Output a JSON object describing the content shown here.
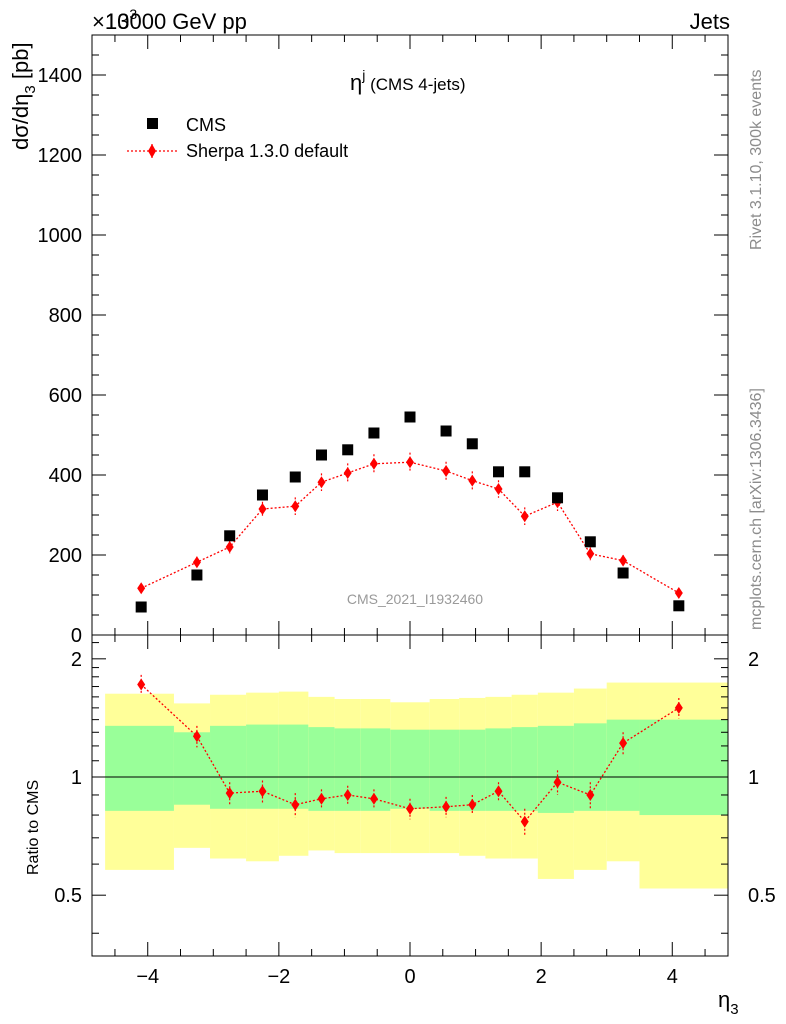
{
  "header": {
    "left": "13000 GeV pp",
    "right": "Jets",
    "exponent": "×10",
    "exponent_power": "3"
  },
  "side_labels": {
    "top": "Rivet 3.1.10,  300k events",
    "bottom": "mcplots.cern.ch [arXiv:1306.3436]"
  },
  "watermark": "CMS_2021_I1932460",
  "legend": {
    "items": [
      {
        "label": "CMS",
        "marker": "square",
        "color": "#000000"
      },
      {
        "label": "Sherpa 1.3.0 default",
        "marker": "diamond",
        "color": "#ff0000"
      }
    ]
  },
  "chart_data": [
    {
      "type": "scatter",
      "title": "η^j (CMS 4-jets)",
      "title_main": "η",
      "title_sup": "j",
      "title_rest": " (CMS 4-jets)",
      "xlabel": "η_3",
      "xlabel_main": "η",
      "xlabel_sub": "3",
      "ylabel": "dσ/dη_3 [pb]",
      "ylabel_a": "dσ/dη",
      "ylabel_sub": "3",
      "ylabel_b": " [pb]",
      "xlim": [
        -4.85,
        4.85
      ],
      "ylim": [
        0,
        1500
      ],
      "xticks": [
        -4,
        -2,
        0,
        2,
        4
      ],
      "xtick_labels": [
        "−4",
        "−2",
        "0",
        "2",
        "4"
      ],
      "yticks": [
        0,
        200,
        400,
        600,
        800,
        1000,
        1200,
        1400
      ],
      "ytick_labels": [
        "0",
        "200",
        "400",
        "600",
        "800",
        "1000",
        "1200",
        "1400"
      ],
      "legend_position": "top-left",
      "series": [
        {
          "name": "CMS",
          "color": "#000000",
          "marker": "square",
          "x": [
            -4.1,
            -3.25,
            -2.75,
            -2.25,
            -1.75,
            -1.35,
            -0.95,
            -0.55,
            0.0,
            0.55,
            0.95,
            1.35,
            1.75,
            2.25,
            2.75,
            3.25,
            4.1
          ],
          "y": [
            70,
            150,
            248,
            350,
            395,
            450,
            463,
            505,
            545,
            510,
            478,
            408,
            408,
            343,
            233,
            155,
            73
          ]
        },
        {
          "name": "Sherpa 1.3.0 default",
          "color": "#ff0000",
          "marker": "diamond",
          "x": [
            -4.1,
            -3.25,
            -2.75,
            -2.25,
            -1.75,
            -1.35,
            -0.95,
            -0.55,
            0.0,
            0.55,
            0.95,
            1.35,
            1.75,
            2.25,
            2.75,
            3.25,
            4.1
          ],
          "y": [
            117,
            182,
            220,
            315,
            322,
            382,
            405,
            428,
            432,
            410,
            386,
            365,
            297,
            332,
            203,
            186,
            105
          ],
          "yerr": [
            10,
            14,
            16,
            18,
            22,
            22,
            24,
            24,
            24,
            23,
            23,
            22,
            22,
            22,
            16,
            14,
            10
          ]
        }
      ]
    },
    {
      "type": "scatter",
      "ylabel": "Ratio to CMS",
      "xlim": [
        -4.85,
        4.85
      ],
      "ylim": [
        0.35,
        2.3
      ],
      "yscale": "log",
      "yticks": [
        0.5,
        1,
        2
      ],
      "ytick_labels": [
        "0.5",
        "1",
        "2"
      ],
      "reference_line": 1,
      "bands": {
        "edges": [
          -4.85,
          -3.6,
          -3.05,
          -2.5,
          -2.0,
          -1.55,
          -1.15,
          -0.75,
          -0.3,
          0.3,
          0.75,
          1.15,
          1.55,
          1.95,
          2.5,
          3.0,
          3.5,
          4.85
        ],
        "inner_color": "#99ff99",
        "outer_color": "#ffff99",
        "inner_low": [
          0.82,
          0.85,
          0.83,
          0.83,
          0.83,
          0.82,
          0.82,
          0.82,
          0.83,
          0.82,
          0.82,
          0.82,
          0.82,
          0.81,
          0.82,
          0.82,
          0.8
        ],
        "inner_high": [
          1.35,
          1.3,
          1.35,
          1.36,
          1.36,
          1.34,
          1.33,
          1.33,
          1.32,
          1.32,
          1.32,
          1.33,
          1.34,
          1.35,
          1.37,
          1.4,
          1.4
        ],
        "outer_low": [
          0.58,
          0.66,
          0.62,
          0.61,
          0.63,
          0.65,
          0.64,
          0.64,
          0.64,
          0.64,
          0.63,
          0.62,
          0.62,
          0.55,
          0.58,
          0.61,
          0.52
        ],
        "outer_high": [
          1.63,
          1.54,
          1.62,
          1.64,
          1.65,
          1.6,
          1.58,
          1.58,
          1.55,
          1.58,
          1.59,
          1.6,
          1.62,
          1.64,
          1.68,
          1.74,
          1.74
        ]
      },
      "series": [
        {
          "name": "Sherpa 1.3.0 default",
          "color": "#ff0000",
          "marker": "diamond",
          "x": [
            -4.1,
            -3.25,
            -2.75,
            -2.25,
            -1.75,
            -1.35,
            -0.95,
            -0.55,
            0.0,
            0.55,
            0.95,
            1.35,
            1.75,
            2.25,
            2.75,
            3.25,
            4.1
          ],
          "y": [
            1.72,
            1.27,
            0.91,
            0.92,
            0.85,
            0.88,
            0.9,
            0.88,
            0.83,
            0.84,
            0.85,
            0.92,
            0.77,
            0.97,
            0.9,
            1.22,
            1.5
          ],
          "yerr": [
            0.1,
            0.08,
            0.06,
            0.06,
            0.06,
            0.05,
            0.05,
            0.05,
            0.05,
            0.05,
            0.05,
            0.05,
            0.06,
            0.07,
            0.07,
            0.08,
            0.09
          ]
        }
      ]
    }
  ]
}
